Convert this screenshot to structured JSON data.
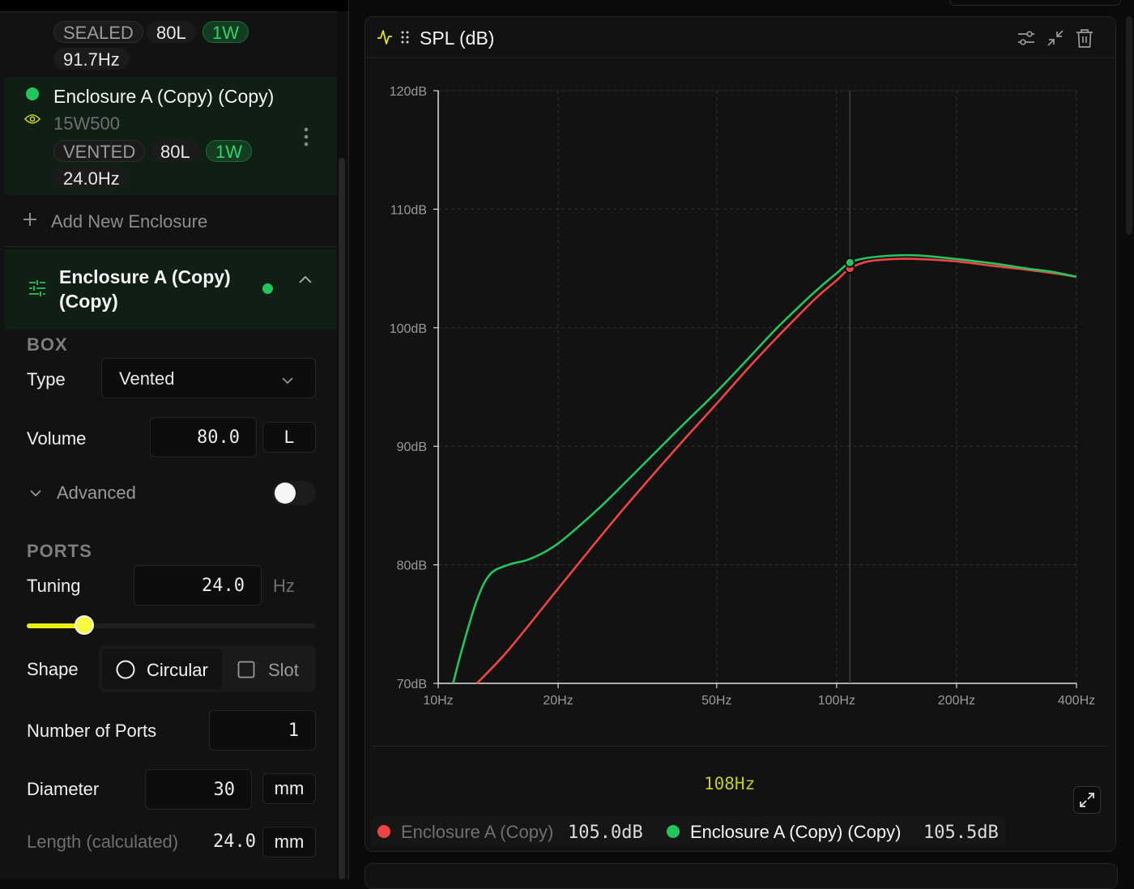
{
  "sidebar": {
    "enclosure_prev": {
      "type_badge": "SEALED",
      "volume_badge": "80L",
      "power_badge": "1W",
      "freq_badge": "91.7Hz"
    },
    "enclosure_selected": {
      "name": "Enclosure A (Copy) (Copy)",
      "driver": "15W500",
      "type_badge": "VENTED",
      "volume_badge": "80L",
      "power_badge": "1W",
      "freq_badge": "24.0Hz"
    },
    "add_new_label": "Add New Enclosure",
    "editor": {
      "title_line1": "Enclosure A (Copy)",
      "title_line2": "(Copy)",
      "box_section": "BOX",
      "type_label": "Type",
      "type_value": "Vented",
      "volume_label": "Volume",
      "volume_value": "80.0",
      "volume_unit": "L",
      "advanced_label": "Advanced",
      "ports_section": "PORTS",
      "tuning_label": "Tuning",
      "tuning_value": "24.0",
      "tuning_unit": "Hz",
      "tuning_slider_fraction": 0.2,
      "shape_label": "Shape",
      "shape_circular": "Circular",
      "shape_slot": "Slot",
      "num_ports_label": "Number of Ports",
      "num_ports_value": "1",
      "diameter_label": "Diameter",
      "diameter_value": "30",
      "diameter_unit": "mm",
      "length_label": "Length (calculated)",
      "length_value": "24.0",
      "length_unit": "mm"
    }
  },
  "chart_panel": {
    "title": "SPL (dB)",
    "cursor_readout": "108Hz",
    "legend": [
      {
        "name": "Enclosure A (Copy)",
        "value": "105.0dB",
        "color": "#ef4444",
        "muted": true
      },
      {
        "name": "Enclosure A (Copy) (Copy)",
        "value": "105.5dB",
        "color": "#22c55e",
        "muted": false
      }
    ]
  },
  "chart_data": {
    "type": "line",
    "title": "SPL (dB)",
    "xscale": "log",
    "xlim": [
      10,
      400
    ],
    "ylim": [
      70,
      120
    ],
    "x_ticks": [
      10,
      20,
      50,
      100,
      200,
      400
    ],
    "x_tick_labels": [
      "10Hz",
      "20Hz",
      "50Hz",
      "100Hz",
      "200Hz",
      "400Hz"
    ],
    "y_ticks": [
      70,
      80,
      90,
      100,
      110,
      120
    ],
    "y_tick_labels": [
      "70dB",
      "80dB",
      "90dB",
      "100dB",
      "110dB",
      "120dB"
    ],
    "grid": true,
    "cursor_x": 108,
    "series": [
      {
        "name": "Enclosure A (Copy)",
        "color": "#ef4444",
        "x": [
          12.5,
          15,
          20,
          25,
          30,
          40,
          50,
          60,
          70,
          80,
          90,
          100,
          108,
          120,
          140,
          160,
          200,
          250,
          300,
          350,
          400
        ],
        "y": [
          70,
          72.8,
          78.0,
          82.0,
          85.2,
          90.0,
          93.6,
          96.6,
          99.0,
          101.0,
          102.7,
          104.0,
          105.0,
          105.6,
          105.8,
          105.8,
          105.6,
          105.2,
          104.9,
          104.6,
          104.3
        ]
      },
      {
        "name": "Enclosure A (Copy) (Copy)",
        "color": "#22c55e",
        "x": [
          10.9,
          11.5,
          12.5,
          13.5,
          15,
          17,
          20,
          25,
          30,
          40,
          50,
          60,
          70,
          80,
          90,
          100,
          108,
          120,
          140,
          160,
          200,
          250,
          300,
          350,
          400
        ],
        "y": [
          70,
          73.0,
          77.0,
          79.2,
          80.0,
          80.5,
          81.8,
          84.6,
          87.2,
          91.4,
          94.6,
          97.4,
          99.8,
          101.7,
          103.3,
          104.6,
          105.5,
          105.9,
          106.1,
          106.1,
          105.8,
          105.4,
          105.0,
          104.7,
          104.3
        ]
      }
    ]
  }
}
